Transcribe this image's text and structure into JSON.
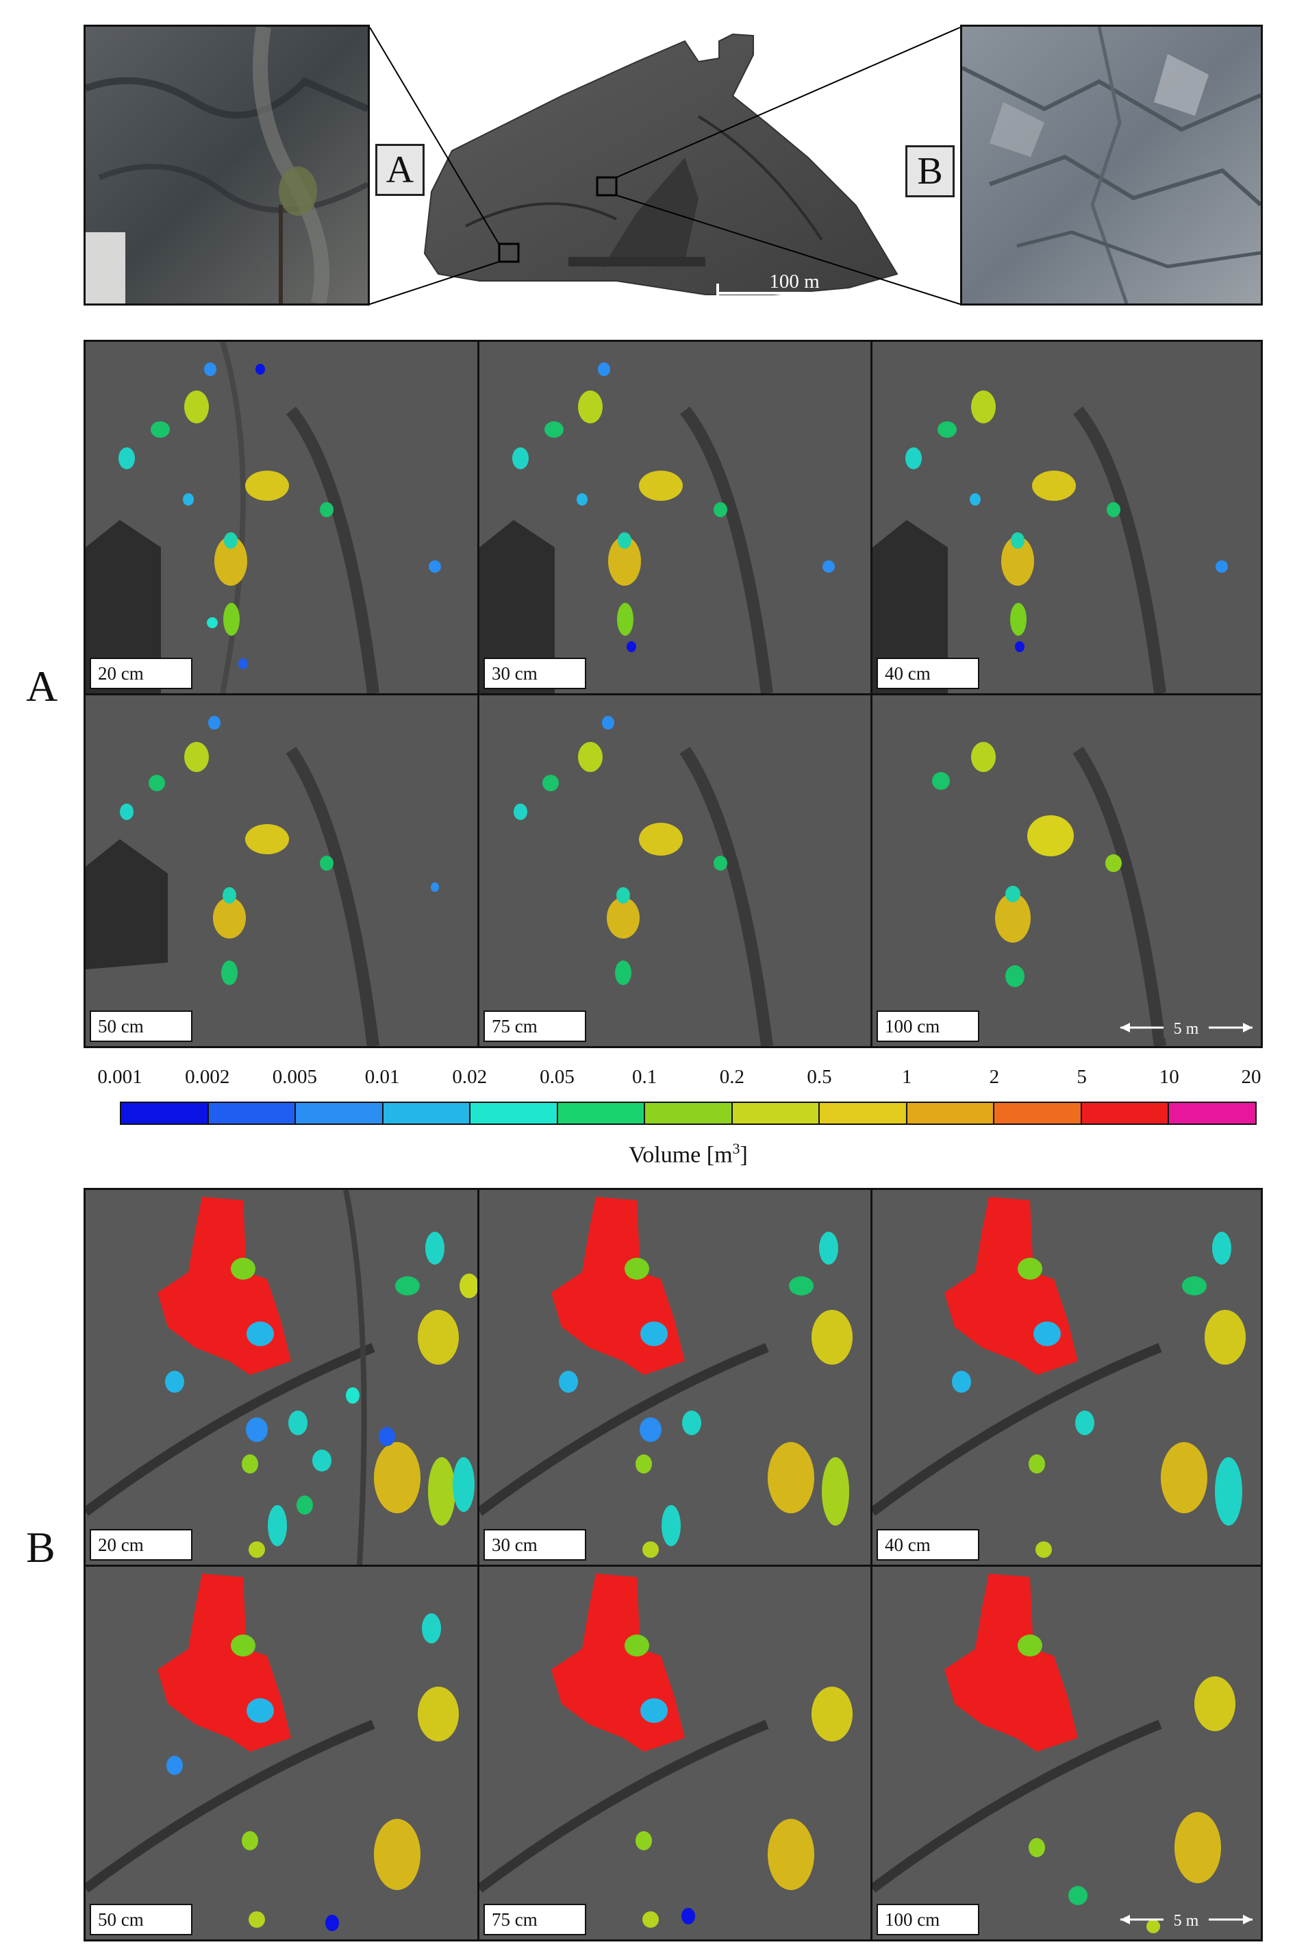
{
  "figure": {
    "overview": {
      "label_a": "A",
      "label_b": "B",
      "scale_label": "100 m"
    },
    "section_a": {
      "side_label": "A",
      "panels": [
        {
          "label": "20 cm"
        },
        {
          "label": "30 cm"
        },
        {
          "label": "40 cm"
        },
        {
          "label": "50 cm"
        },
        {
          "label": "75 cm"
        },
        {
          "label": "100 cm"
        }
      ],
      "scale_label": "5 m"
    },
    "section_b": {
      "side_label": "B",
      "panels": [
        {
          "label": "20 cm"
        },
        {
          "label": "30 cm"
        },
        {
          "label": "40 cm"
        },
        {
          "label": "50 cm"
        },
        {
          "label": "75 cm"
        },
        {
          "label": "100 cm"
        }
      ],
      "scale_label": "5 m"
    },
    "colorbar": {
      "ticks": [
        "0.001",
        "0.002",
        "0.005",
        "0.01",
        "0.02",
        "0.05",
        "0.1",
        "0.2",
        "0.5",
        "1",
        "2",
        "5",
        "10",
        "20"
      ],
      "colors": [
        "#0a12e6",
        "#1f5ef0",
        "#2a8ef2",
        "#25b6e8",
        "#1fe6cf",
        "#19d46e",
        "#8fd21e",
        "#c8d61e",
        "#e2cb1c",
        "#e3a81a",
        "#ef6b1d",
        "#ee1d1d",
        "#e8169b"
      ],
      "label_text": "Volume [m",
      "label_sup": "3",
      "label_close": "]"
    }
  }
}
